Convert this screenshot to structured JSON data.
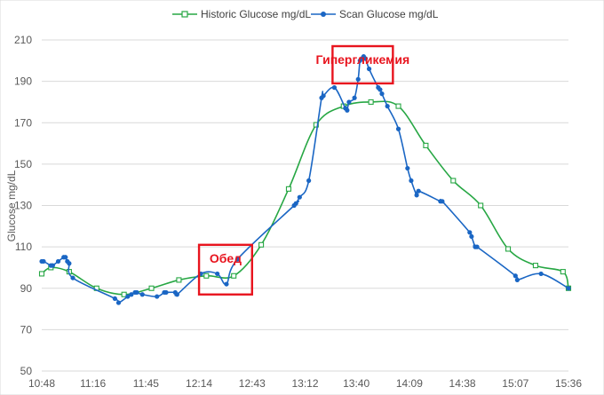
{
  "chart_data": {
    "type": "line",
    "title": "",
    "xlabel": "",
    "ylabel": "Glucose mg/dL",
    "ylim": [
      50,
      210
    ],
    "yticks": [
      50,
      70,
      90,
      110,
      130,
      150,
      170,
      190,
      210
    ],
    "xrange": [
      "10:48",
      "15:36"
    ],
    "xticks": [
      "10:48",
      "11:16",
      "11:45",
      "12:14",
      "12:43",
      "13:12",
      "13:40",
      "14:09",
      "14:38",
      "15:07",
      "15:36"
    ],
    "grid": "horizontal",
    "legend": "top-center",
    "series": [
      {
        "name": "Historic Glucose mg/dL",
        "color": "#27a744",
        "marker": "hollow-square",
        "points": [
          [
            "10:48",
            97
          ],
          [
            "10:53",
            100
          ],
          [
            "11:03",
            98
          ],
          [
            "11:18",
            90
          ],
          [
            "11:33",
            87
          ],
          [
            "11:48",
            90
          ],
          [
            "12:03",
            94
          ],
          [
            "12:18",
            96
          ],
          [
            "12:33",
            96
          ],
          [
            "12:48",
            111
          ],
          [
            "13:03",
            138
          ],
          [
            "13:18",
            169
          ],
          [
            "13:33",
            178
          ],
          [
            "13:48",
            180
          ],
          [
            "14:03",
            178
          ],
          [
            "14:18",
            159
          ],
          [
            "14:33",
            142
          ],
          [
            "14:48",
            130
          ],
          [
            "15:03",
            109
          ],
          [
            "15:18",
            101
          ],
          [
            "15:33",
            98
          ],
          [
            "15:36",
            90
          ]
        ]
      },
      {
        "name": "Scan Glucose mg/dL",
        "color": "#1a66c4",
        "marker": "filled-circle",
        "points": [
          [
            "10:48",
            103
          ],
          [
            "10:49",
            103
          ],
          [
            "10:53",
            101
          ],
          [
            "10:54",
            101
          ],
          [
            "10:57",
            103
          ],
          [
            "11:00",
            105
          ],
          [
            "11:01",
            105
          ],
          [
            "11:02",
            103
          ],
          [
            "11:03",
            102
          ],
          [
            "11:05",
            95
          ],
          [
            "11:28",
            85
          ],
          [
            "11:30",
            83
          ],
          [
            "11:35",
            86
          ],
          [
            "11:37",
            87
          ],
          [
            "11:39",
            88
          ],
          [
            "11:40",
            88
          ],
          [
            "11:43",
            87
          ],
          [
            "11:51",
            86
          ],
          [
            "11:55",
            88
          ],
          [
            "11:56",
            88
          ],
          [
            "12:01",
            88
          ],
          [
            "12:02",
            87
          ],
          [
            "12:15",
            97
          ],
          [
            "12:24",
            97
          ],
          [
            "12:29",
            92
          ],
          [
            "12:35",
            104
          ],
          [
            "13:06",
            130
          ],
          [
            "13:07",
            131
          ],
          [
            "13:09",
            134
          ],
          [
            "13:14",
            142
          ],
          [
            "13:21",
            182
          ],
          [
            "13:22",
            183
          ],
          [
            "13:28",
            187
          ],
          [
            "13:34",
            177
          ],
          [
            "13:35",
            176
          ],
          [
            "13:36",
            180
          ],
          [
            "13:39",
            182
          ],
          [
            "13:41",
            191
          ],
          [
            "13:42",
            200
          ],
          [
            "13:43",
            201
          ],
          [
            "13:44",
            202
          ],
          [
            "13:45",
            201
          ],
          [
            "13:47",
            196
          ],
          [
            "13:52",
            187
          ],
          [
            "13:53",
            186
          ],
          [
            "13:54",
            184
          ],
          [
            "13:57",
            178
          ],
          [
            "14:03",
            167
          ],
          [
            "14:08",
            148
          ],
          [
            "14:10",
            142
          ],
          [
            "14:13",
            135
          ],
          [
            "14:14",
            137
          ],
          [
            "14:26",
            132
          ],
          [
            "14:27",
            132
          ],
          [
            "14:42",
            117
          ],
          [
            "14:43",
            115
          ],
          [
            "14:45",
            110
          ],
          [
            "14:46",
            110
          ],
          [
            "15:07",
            96
          ],
          [
            "15:08",
            94
          ],
          [
            "15:21",
            97
          ],
          [
            "15:36",
            90
          ]
        ]
      }
    ],
    "annotations": [
      {
        "text": "Обед",
        "box_from": [
          "12:14",
          87
        ],
        "box_to": [
          "12:43",
          111
        ]
      },
      {
        "text": "Гипергликемия",
        "box_from": [
          "13:27",
          189
        ],
        "box_to": [
          "14:00",
          207
        ]
      }
    ],
    "annotation_color": "#e8141e"
  }
}
